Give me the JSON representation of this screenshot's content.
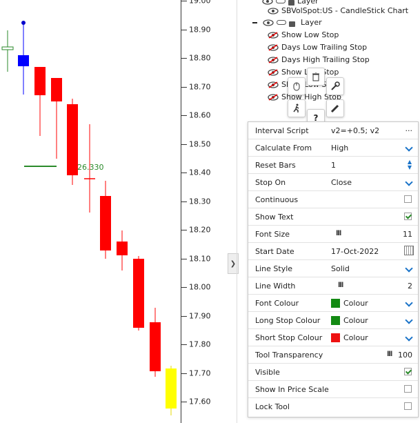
{
  "chart": {
    "price_labels": [
      "19.00",
      "18.90",
      "18.80",
      "18.70",
      "18.60",
      "18.50",
      "18.40",
      "18.30",
      "18.20",
      "18.10",
      "18.00",
      "17.90",
      "17.80",
      "17.70",
      "17.60"
    ],
    "line_label": "26.330",
    "colors": {
      "up": "#0000ff",
      "down": "#ff0000",
      "highlight": "#ffff00",
      "line": "#2a8a2a"
    }
  },
  "layers": {
    "top_partial": "Layer",
    "chart_title": "SBVolSpot:US - CandleStick Chart",
    "group_label": "Layer",
    "items": [
      "Show Low Stop",
      "Days Low Trailing Stop",
      "Days High Trailing Stop",
      "Show Low Stop",
      "Show Low Stop",
      "Show High Stop"
    ]
  },
  "properties": {
    "interval_script": {
      "label": "Interval Script",
      "value": "v2=+0.5; v2",
      "more": "···"
    },
    "calculate_from": {
      "label": "Calculate From",
      "value": "High"
    },
    "reset_bars": {
      "label": "Reset Bars",
      "value": "1"
    },
    "stop_on": {
      "label": "Stop On",
      "value": "Close"
    },
    "continuous": {
      "label": "Continuous",
      "checked": false
    },
    "show_text": {
      "label": "Show Text",
      "checked": true
    },
    "font_size": {
      "label": "Font Size",
      "value": "11"
    },
    "start_date": {
      "label": "Start Date",
      "value": "17-Oct-2022"
    },
    "line_style": {
      "label": "Line Style",
      "value": "Solid"
    },
    "line_width": {
      "label": "Line Width",
      "value": "2"
    },
    "font_colour": {
      "label": "Font Colour",
      "value": "Colour",
      "color": "#138a13"
    },
    "long_stop_colour": {
      "label": "Long Stop Colour",
      "value": "Colour",
      "color": "#138a13"
    },
    "short_stop_colour": {
      "label": "Short Stop Colour",
      "value": "Colour",
      "color": "#ee1111"
    },
    "tool_transparency": {
      "label": "Tool Transparency",
      "value": "100"
    },
    "visible": {
      "label": "Visible",
      "checked": true
    },
    "show_in_price_scale": {
      "label": "Show In Price Scale",
      "checked": false
    },
    "lock_tool": {
      "label": "Lock Tool",
      "checked": false
    }
  },
  "toolbar_icons": [
    "trash-icon",
    "mouse-icon",
    "wrench-icon",
    "runner-icon",
    "pencil-icon",
    "help-icon"
  ]
}
